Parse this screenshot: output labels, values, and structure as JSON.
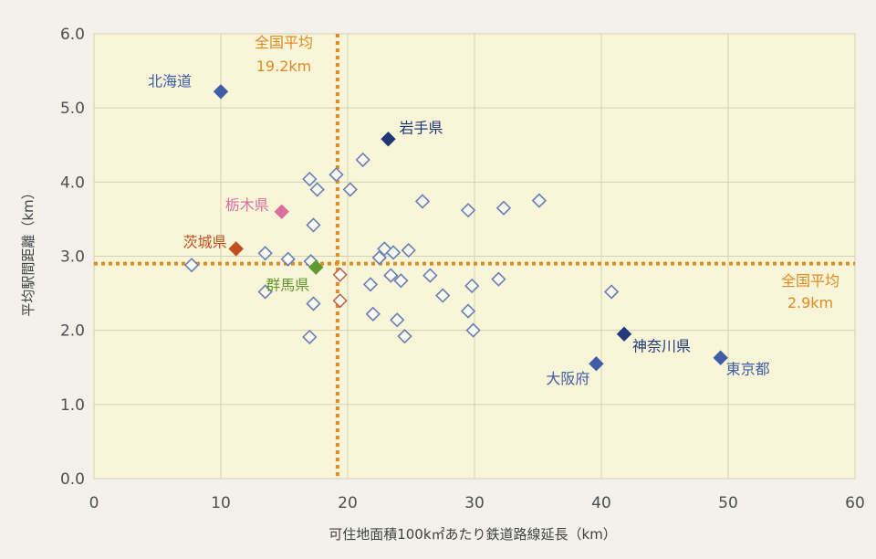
{
  "chart_data": {
    "type": "scatter",
    "title": "",
    "xlabel": "可住地面積100k㎡あたり鉄道路線延長（km）",
    "ylabel": "平均駅間距離（km）",
    "xlim": [
      0,
      60
    ],
    "ylim": [
      0,
      6
    ],
    "x_ticks": [
      "0",
      "10",
      "20",
      "30",
      "40",
      "50",
      "60"
    ],
    "y_ticks": [
      "0.0",
      "1.0",
      "2.0",
      "3.0",
      "4.0",
      "5.0",
      "6.0"
    ],
    "grid": true,
    "reference_lines": {
      "x_average": {
        "value": 19.2,
        "label_line1": "全国平均",
        "label_line2": "19.2km",
        "color": "#e08a22"
      },
      "y_average": {
        "value": 2.9,
        "label_line1": "全国平均",
        "label_line2": "2.9km",
        "color": "#e08a22"
      }
    },
    "highlighted": [
      {
        "name": "北海道",
        "x": 10.0,
        "y": 5.22,
        "color": "#3f5ea6",
        "filled": true
      },
      {
        "name": "岩手県",
        "x": 23.2,
        "y": 4.58,
        "color": "#1f3778",
        "filled": true
      },
      {
        "name": "栃木県",
        "x": 14.8,
        "y": 3.6,
        "color": "#db6fa0",
        "filled": true
      },
      {
        "name": "茨城県",
        "x": 11.2,
        "y": 3.1,
        "color": "#c0501d",
        "filled": true
      },
      {
        "name": "群馬県",
        "x": 17.5,
        "y": 2.85,
        "color": "#5f9b2a",
        "filled": true
      },
      {
        "name": "神奈川県",
        "x": 41.8,
        "y": 1.95,
        "color": "#22397a",
        "filled": true
      },
      {
        "name": "大阪府",
        "x": 39.6,
        "y": 1.55,
        "color": "#3f5ea6",
        "filled": true
      },
      {
        "name": "東京都",
        "x": 49.4,
        "y": 1.63,
        "color": "#3f5ea6",
        "filled": true
      }
    ],
    "others": [
      {
        "x": 7.7,
        "y": 2.88,
        "color": "#6a7fb3"
      },
      {
        "x": 13.5,
        "y": 3.04,
        "color": "#6a7fb3"
      },
      {
        "x": 13.5,
        "y": 2.52,
        "color": "#6a7fb3"
      },
      {
        "x": 15.3,
        "y": 2.96,
        "color": "#6a7fb3"
      },
      {
        "x": 17.0,
        "y": 4.04,
        "color": "#6a7fb3"
      },
      {
        "x": 17.6,
        "y": 3.9,
        "color": "#6a7fb3"
      },
      {
        "x": 17.3,
        "y": 3.42,
        "color": "#6a7fb3"
      },
      {
        "x": 17.1,
        "y": 2.93,
        "color": "#6a7fb3"
      },
      {
        "x": 17.3,
        "y": 2.36,
        "color": "#6a7fb3"
      },
      {
        "x": 17.0,
        "y": 1.91,
        "color": "#6a7fb3"
      },
      {
        "x": 19.1,
        "y": 4.1,
        "color": "#6a7fb3"
      },
      {
        "x": 20.2,
        "y": 3.9,
        "color": "#6a7fb3"
      },
      {
        "x": 21.2,
        "y": 4.3,
        "color": "#6a7fb3"
      },
      {
        "x": 19.4,
        "y": 2.75,
        "color": "#b86a5a"
      },
      {
        "x": 19.4,
        "y": 2.4,
        "color": "#b86a5a"
      },
      {
        "x": 21.8,
        "y": 2.62,
        "color": "#6a7fb3"
      },
      {
        "x": 22.0,
        "y": 2.22,
        "color": "#6a7fb3"
      },
      {
        "x": 22.5,
        "y": 2.98,
        "color": "#6a7fb3"
      },
      {
        "x": 22.9,
        "y": 3.1,
        "color": "#6a7fb3"
      },
      {
        "x": 23.6,
        "y": 3.05,
        "color": "#6a7fb3"
      },
      {
        "x": 23.4,
        "y": 2.74,
        "color": "#6a7fb3"
      },
      {
        "x": 24.2,
        "y": 2.67,
        "color": "#6a7fb3"
      },
      {
        "x": 24.8,
        "y": 3.08,
        "color": "#6a7fb3"
      },
      {
        "x": 23.9,
        "y": 2.14,
        "color": "#6a7fb3"
      },
      {
        "x": 24.5,
        "y": 1.92,
        "color": "#6a7fb3"
      },
      {
        "x": 25.9,
        "y": 3.74,
        "color": "#6a7fb3"
      },
      {
        "x": 26.5,
        "y": 2.74,
        "color": "#6a7fb3"
      },
      {
        "x": 27.5,
        "y": 2.47,
        "color": "#6a7fb3"
      },
      {
        "x": 29.5,
        "y": 3.62,
        "color": "#6a7fb3"
      },
      {
        "x": 29.8,
        "y": 2.6,
        "color": "#6a7fb3"
      },
      {
        "x": 29.5,
        "y": 2.26,
        "color": "#6a7fb3"
      },
      {
        "x": 29.9,
        "y": 2.0,
        "color": "#6a7fb3"
      },
      {
        "x": 31.9,
        "y": 2.69,
        "color": "#6a7fb3"
      },
      {
        "x": 32.3,
        "y": 3.65,
        "color": "#6a7fb3"
      },
      {
        "x": 35.1,
        "y": 3.75,
        "color": "#6a7fb3"
      },
      {
        "x": 40.8,
        "y": 2.52,
        "color": "#6a7fb3"
      }
    ]
  }
}
